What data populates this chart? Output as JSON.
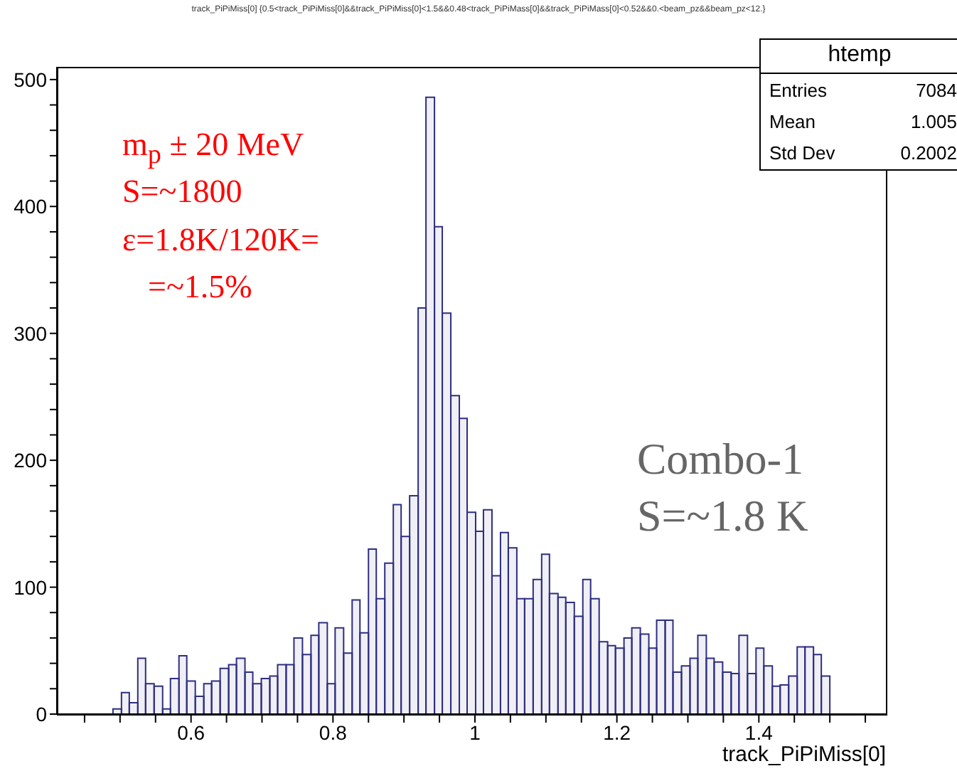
{
  "chart_data": {
    "type": "histogram",
    "title": "track_PiPiMiss[0] {0.5<track_PiPiMiss[0]&&track_PiPiMiss[0]<1.5&&0.48<track_PiPiMass[0]&&track_PiPiMass[0]<0.52&&0.<beam_pz&&beam_pz<12.}",
    "xlabel": "track_PiPiMiss[0]",
    "color": "#2e2e80",
    "bins": [
      0.49,
      0.502,
      0.513,
      0.525,
      0.536,
      0.548,
      0.56,
      0.571,
      0.583,
      0.594,
      0.606,
      0.618,
      0.629,
      0.641,
      0.653,
      0.664,
      0.676,
      0.687,
      0.699,
      0.711,
      0.722,
      0.734,
      0.745,
      0.757,
      0.769,
      0.78,
      0.792,
      0.803,
      0.815,
      0.827,
      0.838,
      0.85,
      0.861,
      0.873,
      0.885,
      0.896,
      0.908,
      0.92,
      0.931,
      0.943,
      0.954,
      0.966,
      0.978,
      0.989,
      1.001,
      1.012,
      1.024,
      1.036,
      1.047,
      1.059,
      1.07,
      1.082,
      1.094,
      1.105,
      1.117,
      1.128,
      1.14,
      1.152,
      1.163,
      1.175,
      1.187,
      1.198,
      1.21,
      1.221,
      1.233,
      1.245,
      1.256,
      1.268,
      1.279,
      1.291,
      1.303,
      1.314,
      1.326,
      1.337,
      1.349,
      1.361,
      1.372,
      1.384,
      1.396,
      1.407,
      1.419,
      1.43,
      1.442,
      1.454,
      1.465,
      1.477,
      1.488,
      1.5
    ],
    "values": [
      4,
      17,
      9,
      44,
      24,
      22,
      4,
      28,
      46,
      26,
      14,
      24,
      26,
      36,
      39,
      44,
      33,
      24,
      28,
      30,
      39,
      39,
      60,
      47,
      62,
      72,
      24,
      68,
      48,
      90,
      64,
      130,
      91,
      119,
      165,
      140,
      172,
      320,
      486,
      384,
      316,
      251,
      233,
      159,
      144,
      161,
      109,
      143,
      131,
      91,
      91,
      106,
      126,
      95,
      92,
      88,
      77,
      106,
      91,
      57,
      54,
      52,
      60,
      68,
      63,
      52,
      74,
      74,
      33,
      38,
      44,
      62,
      44,
      41,
      33,
      32,
      62,
      32,
      52,
      38,
      22,
      23,
      30,
      53,
      53,
      47,
      30
    ],
    "xlim": [
      0.411,
      1.579
    ],
    "ylim": [
      0,
      510
    ],
    "xticks": [
      {
        "value": 0.45,
        "label": null
      },
      {
        "value": 0.5,
        "label": null
      },
      {
        "value": 0.55,
        "label": null
      },
      0.6,
      {
        "value": 0.65,
        "label": null
      },
      {
        "value": 0.7,
        "label": null
      },
      {
        "value": 0.75,
        "label": null
      },
      0.8,
      {
        "value": 0.85,
        "label": null
      },
      {
        "value": 0.9,
        "label": null
      },
      {
        "value": 0.95,
        "label": null
      },
      1,
      {
        "value": 1.05,
        "label": null
      },
      {
        "value": 1.1,
        "label": null
      },
      {
        "value": 1.15,
        "label": null
      },
      1.2,
      {
        "value": 1.25,
        "label": null
      },
      {
        "value": 1.3,
        "label": null
      },
      {
        "value": 1.35,
        "label": null
      },
      1.4,
      {
        "value": 1.45,
        "label": null
      },
      {
        "value": 1.5,
        "label": null
      },
      {
        "value": 1.55,
        "label": null
      }
    ],
    "yticks": [
      0,
      {
        "value": 20,
        "label": null
      },
      {
        "value": 40,
        "label": null
      },
      {
        "value": 60,
        "label": null
      },
      {
        "value": 80,
        "label": null
      },
      100,
      {
        "value": 120,
        "label": null
      },
      {
        "value": 140,
        "label": null
      },
      {
        "value": 160,
        "label": null
      },
      {
        "value": 180,
        "label": null
      },
      200,
      {
        "value": 220,
        "label": null
      },
      {
        "value": 240,
        "label": null
      },
      {
        "value": 260,
        "label": null
      },
      {
        "value": 280,
        "label": null
      },
      300,
      {
        "value": 320,
        "label": null
      },
      {
        "value": 340,
        "label": null
      },
      {
        "value": 360,
        "label": null
      },
      {
        "value": 380,
        "label": null
      },
      400,
      {
        "value": 420,
        "label": null
      },
      {
        "value": 440,
        "label": null
      },
      {
        "value": 460,
        "label": null
      },
      {
        "value": 480,
        "label": null
      },
      500
    ],
    "annotations": [
      "m$_{p}$ ± 20 MeV",
      "S=~1800",
      "ε=1.8K/120K=",
      "=~1.5%",
      "Combo-1",
      "S=~1.8 K",
      "htemp",
      "Entries",
      "7084",
      "Mean",
      "1.005",
      "Std Dev",
      "0.2002"
    ]
  }
}
